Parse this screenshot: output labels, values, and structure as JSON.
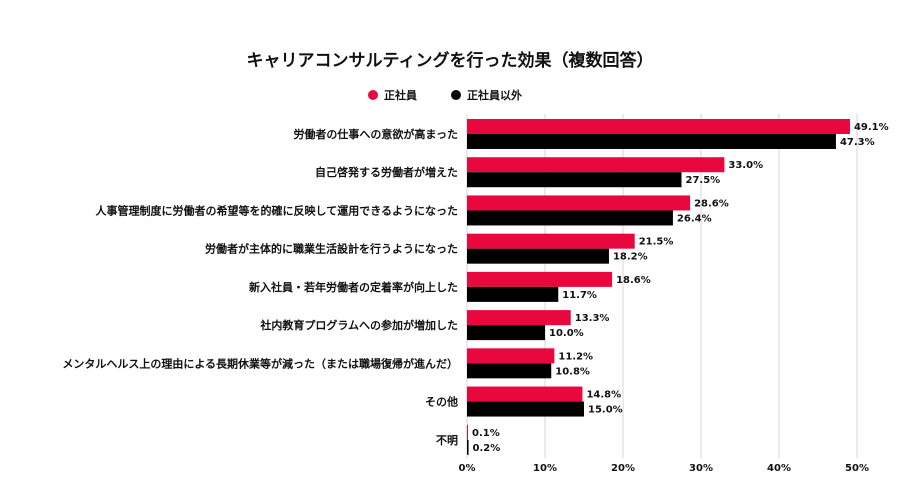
{
  "chart_data": {
    "type": "bar",
    "orientation": "horizontal",
    "title": "キャリアコンサルティングを行った効果（複数回答）",
    "categories": [
      "労働者の仕事への意欲が高まった",
      "自己啓発する労働者が増えた",
      "人事管理制度に労働者の希望等を的確に反映して運用できるようになった",
      "労働者が主体的に職業生活設計を行うようになった",
      "新入社員・若年労働者の定着率が向上した",
      "社内教育プログラムへの参加が増加した",
      "メンタルヘルス上の理由による長期休業等が減った（または職場復帰が進んだ）",
      "その他",
      "不明"
    ],
    "series": [
      {
        "name": "正社員",
        "color": "#e8083e",
        "values": [
          49.1,
          33.0,
          28.6,
          21.5,
          18.6,
          13.3,
          11.2,
          14.8,
          0.1
        ],
        "labels": [
          "49.1%",
          "33.0%",
          "28.6%",
          "21.5%",
          "18.6%",
          "13.3%",
          "11.2%",
          "14.8%",
          "0.1%"
        ]
      },
      {
        "name": "正社員以外",
        "color": "#000000",
        "values": [
          47.3,
          27.5,
          26.4,
          18.2,
          11.7,
          10.0,
          10.8,
          15.0,
          0.2
        ],
        "labels": [
          "47.3%",
          "27.5%",
          "26.4%",
          "18.2%",
          "11.7%",
          "10.0%",
          "10.8%",
          "15.0%",
          "0.2%"
        ]
      }
    ],
    "xlim": [
      0,
      50
    ],
    "xticks": [
      0,
      10,
      20,
      30,
      40,
      50
    ],
    "xtick_labels": [
      "0%",
      "10%",
      "20%",
      "30%",
      "40%",
      "50%"
    ],
    "grid": true,
    "legend": "top-center"
  }
}
